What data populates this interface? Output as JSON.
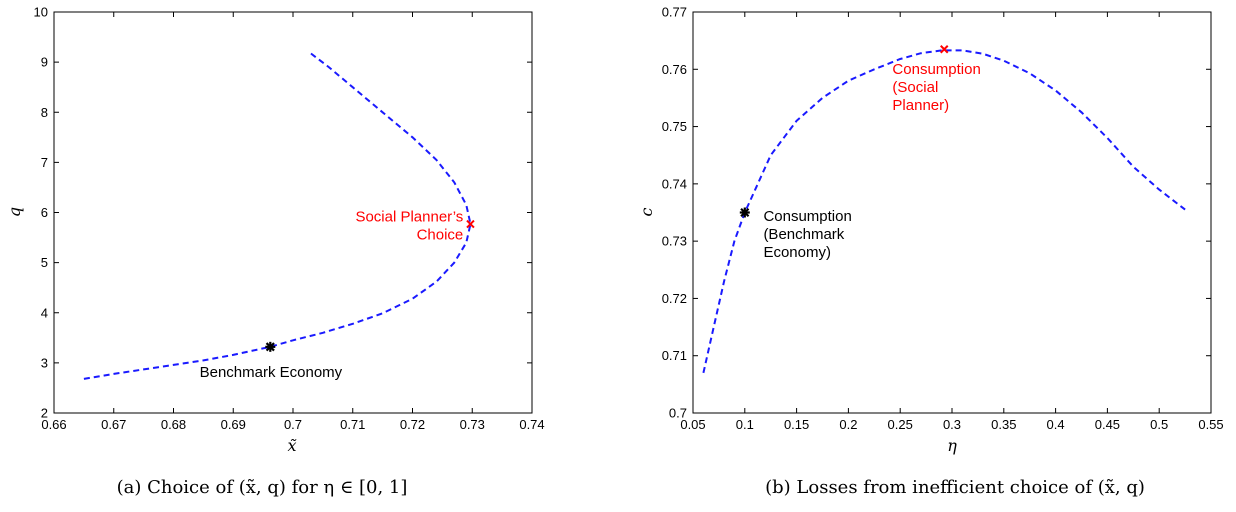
{
  "colors": {
    "line": "#1a1aff",
    "red": "#ff0000",
    "black": "#000000"
  },
  "chart_data": [
    {
      "type": "line",
      "caption": "(a) Choice of (x̃, q) for η ∈ [0, 1]",
      "xlabel": "x̃",
      "ylabel": "q",
      "xlim": [
        0.66,
        0.74
      ],
      "ylim": [
        2,
        10
      ],
      "xticks": [
        "0.66",
        "0.67",
        "0.68",
        "0.69",
        "0.7",
        "0.71",
        "0.72",
        "0.73",
        "0.74"
      ],
      "yticks": [
        "2",
        "3",
        "4",
        "5",
        "6",
        "7",
        "8",
        "9",
        "10"
      ],
      "xtick_values": [
        0.66,
        0.67,
        0.68,
        0.69,
        0.7,
        0.71,
        0.72,
        0.73,
        0.74
      ],
      "ytick_values": [
        2,
        3,
        4,
        5,
        6,
        7,
        8,
        9,
        10
      ],
      "grid": false,
      "series": [
        {
          "style": "dashed",
          "x": [
            0.665,
            0.67,
            0.675,
            0.68,
            0.685,
            0.69,
            0.6962,
            0.7,
            0.705,
            0.71,
            0.715,
            0.72,
            0.724,
            0.727,
            0.729,
            0.7297,
            0.729,
            0.727,
            0.724,
            0.72,
            0.715,
            0.71,
            0.706,
            0.7027
          ],
          "y": [
            2.68,
            2.78,
            2.87,
            2.96,
            3.05,
            3.16,
            3.32,
            3.45,
            3.6,
            3.78,
            3.99,
            4.28,
            4.62,
            5.0,
            5.4,
            5.77,
            6.15,
            6.6,
            7.05,
            7.5,
            8.0,
            8.5,
            8.9,
            9.2
          ]
        }
      ],
      "markers": [
        {
          "label": "Benchmark Economy",
          "x": 0.6962,
          "y": 3.32,
          "symbol": "star",
          "color": "#000000",
          "text_x": 0.6963,
          "text_y": 2.72
        },
        {
          "label_lines": [
            "Social Planner’s",
            "Choice"
          ],
          "x": 0.7297,
          "y": 5.77,
          "symbol": "x",
          "color": "#ff0000",
          "text_x": 0.7285,
          "text_y": 5.82
        }
      ]
    },
    {
      "type": "line",
      "caption": "(b) Losses from inefficient choice of (x̃, q)",
      "xlabel": "η",
      "ylabel": "c",
      "xlim": [
        0.05,
        0.55
      ],
      "ylim": [
        0.7,
        0.77
      ],
      "xticks": [
        "0.05",
        "0.1",
        "0.15",
        "0.2",
        "0.25",
        "0.3",
        "0.35",
        "0.4",
        "0.45",
        "0.5",
        "0.55"
      ],
      "yticks": [
        "0.7",
        "0.71",
        "0.72",
        "0.73",
        "0.74",
        "0.75",
        "0.76",
        "0.77"
      ],
      "xtick_values": [
        0.05,
        0.1,
        0.15,
        0.2,
        0.25,
        0.3,
        0.35,
        0.4,
        0.45,
        0.5,
        0.55
      ],
      "ytick_values": [
        0.7,
        0.71,
        0.72,
        0.73,
        0.74,
        0.75,
        0.76,
        0.77
      ],
      "grid": false,
      "series": [
        {
          "style": "dashed",
          "x": [
            0.06,
            0.07,
            0.08,
            0.09,
            0.1,
            0.11,
            0.125,
            0.15,
            0.175,
            0.2,
            0.225,
            0.25,
            0.27,
            0.29,
            0.31,
            0.33,
            0.35,
            0.375,
            0.4,
            0.425,
            0.45,
            0.475,
            0.5,
            0.525
          ],
          "y": [
            0.707,
            0.715,
            0.723,
            0.73,
            0.735,
            0.739,
            0.745,
            0.751,
            0.755,
            0.758,
            0.76,
            0.7618,
            0.7628,
            0.7633,
            0.7633,
            0.7627,
            0.7615,
            0.7593,
            0.7563,
            0.7525,
            0.748,
            0.743,
            0.739,
            0.7355
          ]
        }
      ],
      "markers": [
        {
          "label_lines": [
            "Consumption",
            "(Benchmark",
            "Economy)"
          ],
          "x": 0.1,
          "y": 0.735,
          "symbol": "star",
          "color": "#000000",
          "text_x": 0.118,
          "text_y": 0.7335
        },
        {
          "label_lines": [
            "Consumption",
            "(Social",
            "Planner)"
          ],
          "x": 0.2925,
          "y": 0.7635,
          "symbol": "x",
          "color": "#ff0000",
          "text_x": 0.2425,
          "text_y": 0.7592
        }
      ]
    }
  ]
}
